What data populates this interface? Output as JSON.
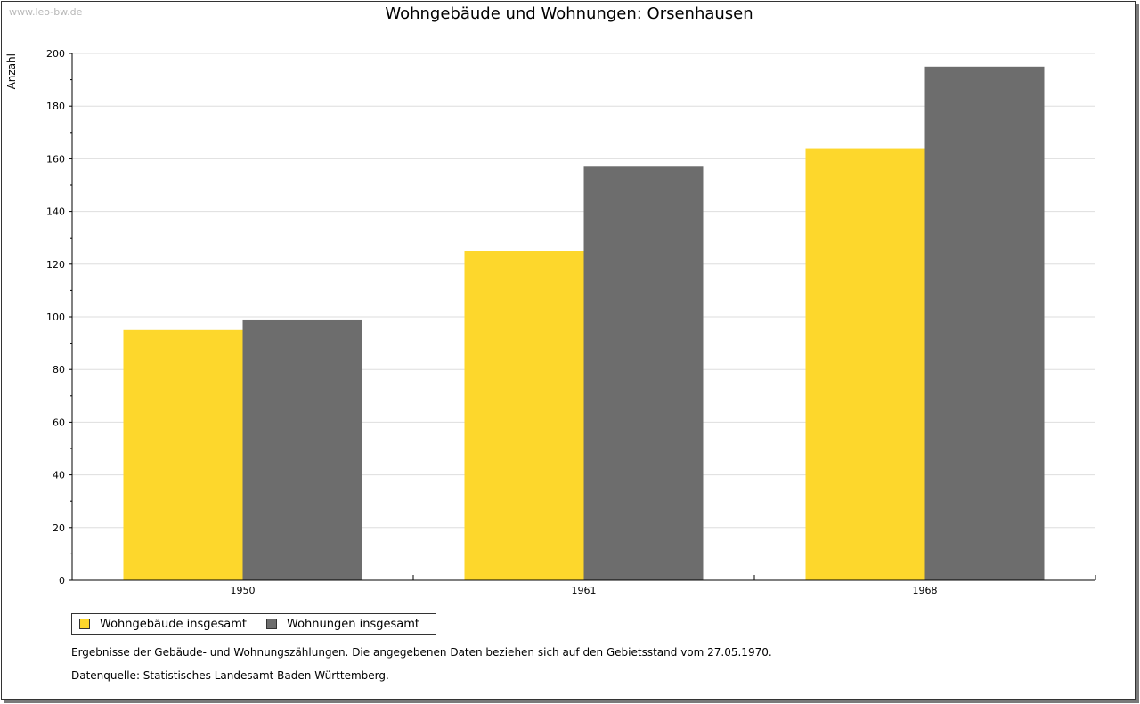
{
  "watermark": "www.leo-bw.de",
  "chart_data": {
    "type": "bar",
    "title": "Wohngebäude und Wohnungen: Orsenhausen",
    "ylabel": "Anzahl",
    "xlabel": "",
    "categories": [
      "1950",
      "1961",
      "1968"
    ],
    "series": [
      {
        "name": "Wohngebäude insgesamt",
        "values": [
          95,
          125,
          164
        ],
        "color": "#FDD72C"
      },
      {
        "name": "Wohnungen insgesamt",
        "values": [
          99,
          157,
          195
        ],
        "color": "#6D6D6D"
      }
    ],
    "ylim": [
      0,
      200
    ],
    "yticks": [
      "0",
      "20",
      "40",
      "60",
      "80",
      "100",
      "120",
      "140",
      "160",
      "180",
      "200"
    ],
    "grid": true,
    "legend_position": "bottom-left"
  },
  "notes": {
    "source_note": "Ergebnisse der Gebäude- und Wohnungszählungen. Die angegebenen Daten beziehen sich auf den Gebietsstand vom 27.05.1970.",
    "data_source": "Datenquelle: Statistisches Landesamt Baden-Württemberg."
  }
}
